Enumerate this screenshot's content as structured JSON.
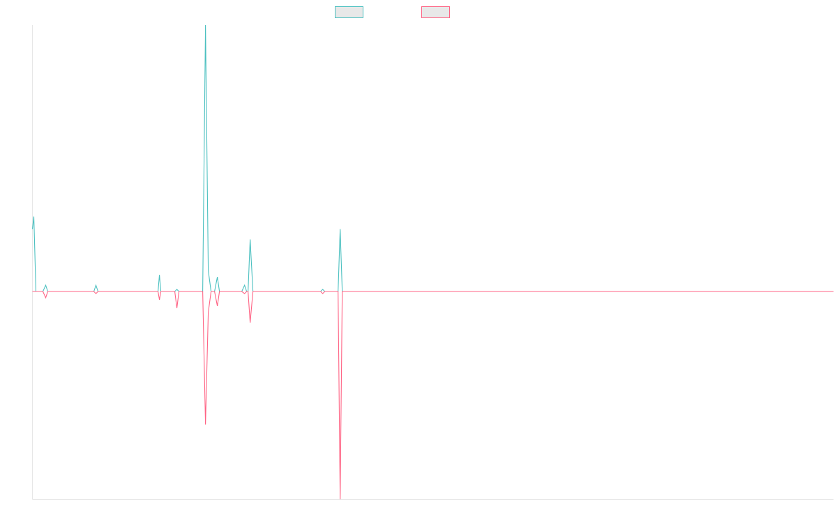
{
  "chart_data": {
    "type": "line",
    "title": "",
    "xlabel": "",
    "ylabel": "",
    "ylim": [
      -100,
      100
    ],
    "grid": false,
    "legend_position": "top-center",
    "x": [
      0,
      1,
      2,
      3,
      4,
      5,
      6,
      7,
      8,
      9,
      10,
      11,
      12,
      13,
      14,
      15,
      16,
      17,
      18,
      19,
      20,
      21,
      22,
      23,
      24,
      25,
      26,
      27,
      28,
      29,
      30,
      31,
      32,
      33,
      34,
      35,
      36,
      37,
      38,
      39,
      40,
      41,
      42,
      43,
      44,
      45,
      46,
      47,
      48,
      49,
      50,
      51,
      52,
      53,
      54,
      55,
      56,
      57,
      58,
      59,
      60,
      61,
      62,
      63,
      64,
      65,
      66,
      67,
      68,
      69,
      70,
      71,
      72,
      73,
      74,
      75,
      76,
      77,
      78,
      79,
      80,
      81,
      82,
      83,
      84,
      85,
      86,
      87,
      88,
      89,
      90,
      91,
      92,
      93,
      94,
      95,
      96,
      97,
      98,
      99,
      100,
      101,
      102,
      103,
      104,
      105,
      106,
      107,
      108,
      109,
      110,
      111,
      112,
      113,
      114,
      115,
      116,
      117,
      118,
      119,
      120,
      121,
      122,
      123,
      124,
      125,
      126,
      127,
      128,
      129,
      130,
      131,
      132,
      133,
      134,
      135,
      136,
      137,
      138,
      139,
      140,
      141,
      142,
      143,
      144,
      145,
      146,
      147,
      148,
      149,
      150,
      151,
      152,
      153,
      154,
      155,
      156,
      157,
      158,
      159,
      160,
      161,
      162,
      163,
      164,
      165,
      166,
      167,
      168,
      169,
      170,
      171,
      172,
      173,
      174,
      175,
      176,
      177,
      178,
      179,
      180,
      181,
      182,
      183,
      184,
      185,
      186,
      187,
      188,
      189,
      190,
      191,
      192,
      193,
      194,
      195,
      196,
      197,
      198,
      199,
      200,
      201,
      202,
      203,
      204,
      205,
      206,
      207,
      208,
      209,
      210,
      211,
      212,
      213,
      214,
      215,
      216,
      217,
      218,
      219,
      220,
      221,
      222,
      223,
      224,
      225,
      226,
      227,
      228,
      229,
      230,
      231,
      232,
      233,
      234,
      235,
      236,
      237,
      238,
      239,
      240,
      241,
      242,
      243,
      244,
      245,
      246,
      247,
      248,
      249,
      250,
      251,
      252,
      253,
      254,
      255,
      256,
      257,
      258,
      259,
      260,
      261,
      262,
      263,
      264,
      265,
      266,
      267,
      268,
      269,
      270,
      271,
      272,
      273,
      274,
      275,
      276,
      277,
      278,
      279,
      280,
      281,
      282,
      283,
      284,
      285,
      286,
      287,
      288,
      289,
      290,
      291,
      292,
      293,
      294,
      295,
      296,
      297,
      298,
      299,
      300,
      301,
      302,
      303,
      304,
      305,
      306,
      307,
      308,
      309,
      310,
      311,
      312,
      313,
      314,
      315,
      316,
      317,
      318,
      319,
      320,
      321,
      322,
      323,
      324,
      325,
      326,
      327,
      328,
      329,
      330,
      331,
      332,
      333,
      334,
      335,
      336,
      337,
      338,
      339,
      340,
      341,
      342,
      343,
      344,
      345,
      346,
      347,
      348,
      349,
      350,
      351,
      352,
      353,
      354,
      355,
      356,
      357,
      358,
      359,
      360,
      361,
      362,
      363,
      364,
      365,
      366,
      367,
      368,
      369,
      370,
      371,
      372,
      373,
      374,
      375,
      376,
      377,
      378,
      379,
      380,
      381,
      382,
      383,
      384,
      385,
      386,
      387,
      388,
      389,
      390,
      391,
      392,
      393,
      394,
      395,
      396,
      397,
      398,
      399,
      400,
      401,
      402,
      403,
      404,
      405,
      406,
      407,
      408,
      409,
      410,
      411,
      412,
      413,
      414,
      415,
      416,
      417,
      418,
      419,
      420,
      421,
      422,
      423,
      424,
      425,
      426,
      427,
      428,
      429,
      430,
      431,
      432,
      433,
      434,
      435,
      436,
      437,
      438,
      439,
      440,
      441,
      442,
      443,
      444,
      445,
      446,
      447,
      448,
      449,
      450,
      451,
      452,
      453,
      454,
      455,
      456,
      457,
      458,
      459,
      460,
      461,
      462,
      463,
      464,
      465,
      466,
      467,
      468,
      469,
      470,
      471,
      472,
      473,
      474,
      475,
      476,
      477,
      478,
      479,
      480,
      481,
      482,
      483,
      484,
      485,
      486,
      487,
      488,
      489,
      490,
      491,
      492,
      493,
      494,
      495,
      496,
      497,
      498,
      499,
      500,
      501,
      502,
      503,
      504,
      505,
      506,
      507,
      508,
      509,
      510,
      511,
      512,
      513,
      514,
      515,
      516,
      517,
      518,
      519,
      520,
      521,
      522,
      523,
      524,
      525,
      526,
      527,
      528,
      529,
      530,
      531,
      532,
      533,
      534,
      535,
      536,
      537,
      538,
      539,
      540,
      541,
      542,
      543,
      544,
      545,
      546,
      547,
      548,
      549,
      550,
      551,
      552,
      553,
      554,
      555,
      556,
      557,
      558,
      559,
      560,
      561,
      562,
      563,
      564,
      565,
      566,
      567,
      568,
      569,
      570,
      571,
      572,
      573,
      574,
      575,
      576,
      577,
      578,
      579,
      580,
      581,
      582,
      583,
      584,
      585,
      586,
      587,
      588,
      589,
      590,
      591,
      592,
      593,
      594,
      595,
      596,
      597,
      598,
      599,
      600,
      601,
      602,
      603,
      604,
      605,
      606,
      607,
      608,
      609,
      610,
      611,
      612,
      613,
      614,
      615,
      616,
      617,
      618,
      619,
      620,
      621,
      622,
      623,
      624,
      625,
      626,
      627,
      628,
      629,
      630,
      631,
      632,
      633,
      634,
      635,
      636,
      637,
      638,
      639,
      640,
      641,
      642,
      643,
      644,
      645,
      646,
      647,
      648,
      649,
      650,
      651,
      652,
      653,
      654,
      655,
      656,
      657,
      658,
      659,
      660,
      661,
      662,
      663,
      664,
      665,
      666,
      667,
      668,
      669,
      670,
      671,
      672,
      673,
      674,
      675,
      676,
      677,
      678,
      679,
      680,
      681,
      682,
      683,
      684,
      685,
      686,
      687,
      688,
      689,
      690,
      691,
      692,
      693,
      694,
      695,
      696,
      697,
      698,
      699,
      700,
      701,
      702,
      703,
      704,
      705,
      706,
      707,
      708,
      709,
      710,
      711,
      712,
      713,
      714,
      715,
      716,
      717,
      718,
      719,
      720,
      721,
      722,
      723,
      724,
      725,
      726,
      727,
      728,
      729,
      730,
      731,
      732,
      733,
      734,
      735,
      736,
      737,
      738,
      739,
      740,
      741,
      742,
      743,
      744,
      745,
      746,
      747,
      748,
      749,
      750,
      751,
      752,
      753,
      754,
      755,
      756,
      757,
      758,
      759,
      760,
      761,
      762,
      763,
      764,
      765,
      766,
      767,
      768,
      769,
      770,
      771,
      772,
      773,
      774,
      775,
      776,
      777,
      778,
      779,
      780,
      781,
      782,
      783,
      784,
      785,
      786,
      787,
      788,
      789,
      790,
      791,
      792,
      793,
      794,
      795,
      796,
      797,
      798,
      799,
      800,
      801,
      802,
      803,
      804,
      805,
      806,
      807,
      808,
      809,
      810,
      811,
      812,
      813,
      814,
      815,
      816,
      817,
      818,
      819,
      820,
      821,
      822,
      823,
      824,
      825,
      826,
      827,
      828,
      829,
      830,
      831,
      832,
      833,
      834,
      835,
      836,
      837,
      838,
      839,
      840,
      841,
      842,
      843,
      844,
      845,
      846,
      847,
      848,
      849,
      850,
      851,
      852,
      853,
      854,
      855,
      856,
      857,
      858,
      859,
      860,
      861,
      862,
      863,
      864,
      865,
      866,
      867,
      868,
      869,
      870,
      871,
      872,
      873,
      874,
      875,
      876,
      877,
      878,
      879,
      880,
      881,
      882,
      883,
      884,
      885,
      886,
      887,
      888,
      889,
      890,
      891,
      892,
      893,
      894,
      895,
      896,
      897,
      898,
      899,
      900,
      901,
      902,
      903,
      904,
      905,
      906,
      907,
      908,
      909,
      910,
      911,
      912,
      913,
      914,
      915,
      916,
      917,
      918,
      919,
      920,
      921,
      922,
      923,
      924,
      925,
      926,
      927,
      928,
      929,
      930,
      931,
      932,
      933,
      934,
      935,
      936,
      937,
      938,
      939,
      940,
      941,
      942,
      943,
      944,
      945,
      946,
      947,
      948,
      949,
      950,
      951,
      952,
      953,
      954,
      955,
      956,
      957,
      958,
      959,
      960,
      961,
      962,
      963,
      964,
      965,
      966,
      967,
      968,
      969,
      970,
      971,
      972,
      973,
      974,
      975,
      976,
      977,
      978,
      979,
      980,
      981,
      982,
      983,
      984,
      985,
      986,
      987,
      988,
      989,
      990,
      991,
      992,
      993,
      994,
      995,
      996,
      997,
      998,
      999,
      1000,
      1001,
      1002,
      1003,
      1004,
      1005,
      1006,
      1007,
      1008,
      1009,
      1010,
      1011,
      1012,
      1013,
      1014,
      1015,
      1016,
      1017,
      1018,
      1019,
      1020,
      1021,
      1022,
      1023,
      1024,
      1025,
      1026,
      1027,
      1028,
      1029,
      1030,
      1031,
      1032,
      1033,
      1034,
      1035,
      1036,
      1037,
      1038,
      1039,
      1040,
      1041,
      1042,
      1043,
      1044,
      1045,
      1046,
      1047,
      1048,
      1049,
      1050,
      1051,
      1052,
      1053,
      1054,
      1055,
      1056,
      1057,
      1058,
      1059,
      1060,
      1061,
      1062,
      1063,
      1064,
      1065,
      1066,
      1067,
      1068,
      1069,
      1070,
      1071,
      1072,
      1073,
      1074,
      1075,
      1076,
      1077,
      1078,
      1079,
      1080,
      1081,
      1082,
      1083,
      1084,
      1085,
      1086,
      1087,
      1088,
      1089,
      1090,
      1091,
      1092,
      1093,
      1094,
      1095,
      1096,
      1097,
      1098,
      1099,
      1100,
      1101,
      1102,
      1103,
      1104,
      1105,
      1106,
      1107,
      1108,
      1109,
      1110,
      1111,
      1112,
      1113,
      1114,
      1115,
      1116,
      1117,
      1118,
      1119,
      1120,
      1121,
      1122,
      1123,
      1124,
      1125,
      1126,
      1127,
      1128,
      1129,
      1130,
      1131,
      1132,
      1133,
      1134,
      1135,
      1136,
      1137,
      1138,
      1139,
      1140,
      1141,
      1142,
      1143,
      1144,
      1145,
      1146,
      1147,
      1148
    ],
    "series": [
      {
        "color": "#4bc0c0",
        "points": [
          [
            0,
            30
          ],
          [
            2,
            36
          ],
          [
            5,
            0
          ],
          [
            15,
            0
          ],
          [
            19,
            3
          ],
          [
            22,
            0
          ],
          [
            24,
            0
          ],
          [
            88,
            0
          ],
          [
            91,
            3
          ],
          [
            94,
            0
          ],
          [
            180,
            0
          ],
          [
            182,
            8
          ],
          [
            184,
            0
          ],
          [
            204,
            0
          ],
          [
            207,
            1
          ],
          [
            210,
            0
          ],
          [
            244,
            0
          ],
          [
            248,
            128
          ],
          [
            252,
            10
          ],
          [
            256,
            0
          ],
          [
            261,
            0
          ],
          [
            265,
            7
          ],
          [
            268,
            0
          ],
          [
            300,
            0
          ],
          [
            304,
            3
          ],
          [
            307,
            0
          ],
          [
            309,
            0
          ],
          [
            312,
            25
          ],
          [
            316,
            0
          ],
          [
            413,
            0
          ],
          [
            416,
            1
          ],
          [
            419,
            0
          ],
          [
            438,
            0
          ],
          [
            441,
            30
          ],
          [
            444,
            0
          ],
          [
            1148,
            0
          ]
        ]
      },
      {
        "color": "#ff6384",
        "points": [
          [
            0,
            0
          ],
          [
            15,
            0
          ],
          [
            19,
            -3
          ],
          [
            22,
            0
          ],
          [
            88,
            0
          ],
          [
            91,
            -1
          ],
          [
            94,
            0
          ],
          [
            180,
            0
          ],
          [
            182,
            -4
          ],
          [
            184,
            0
          ],
          [
            204,
            0
          ],
          [
            207,
            -8
          ],
          [
            210,
            0
          ],
          [
            244,
            0
          ],
          [
            248,
            -64
          ],
          [
            252,
            -10
          ],
          [
            256,
            0
          ],
          [
            261,
            0
          ],
          [
            265,
            -7
          ],
          [
            268,
            0
          ],
          [
            300,
            0
          ],
          [
            304,
            -1
          ],
          [
            307,
            0
          ],
          [
            309,
            0
          ],
          [
            312,
            -15
          ],
          [
            316,
            0
          ],
          [
            413,
            0
          ],
          [
            416,
            -1
          ],
          [
            419,
            0
          ],
          [
            438,
            0
          ],
          [
            441,
            -100
          ],
          [
            444,
            0
          ],
          [
            1148,
            0
          ]
        ]
      }
    ]
  }
}
